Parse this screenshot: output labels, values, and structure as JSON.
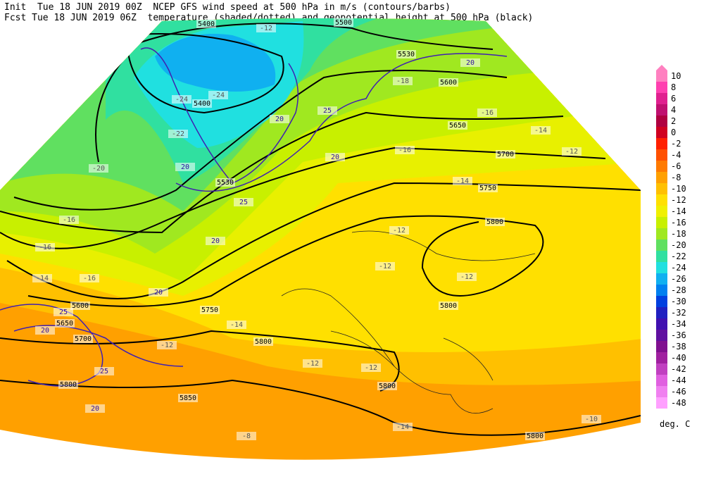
{
  "header": {
    "line1": "Init  Tue 18 JUN 2019 00Z  NCEP GFS wind speed at 500 hPa in m/s (contours/barbs)",
    "line2": "Fcst Tue 18 JUN 2019 06Z  temperature (shaded/dotted) and geopotential height at 500 hPa (black)"
  },
  "map": {
    "height_labels": [
      5400,
      5500,
      5530,
      5600,
      5650,
      5700,
      5750,
      5800,
      5800,
      5400,
      5530,
      5750,
      5800,
      5800,
      5800,
      5850,
      5800,
      5700,
      5650,
      5600
    ],
    "temperature_labels": [
      -12,
      -18,
      -16,
      -14,
      -12,
      -16,
      -14,
      -20,
      -22,
      -24,
      -24,
      -16,
      -16,
      -16,
      -14,
      -12,
      -12,
      -12,
      -14,
      -12,
      -12,
      -12,
      -14,
      -10,
      -8
    ],
    "wind_labels": [
      20,
      25,
      20,
      20,
      20,
      25,
      20,
      20,
      25,
      20,
      25,
      20
    ]
  },
  "colorbar": {
    "labels": [
      10,
      8,
      6,
      4,
      2,
      0,
      -2,
      -4,
      -6,
      -8,
      -10,
      -12,
      -14,
      -16,
      -18,
      -20,
      -22,
      -24,
      -26,
      -28,
      -30,
      -32,
      -34,
      -36,
      -38,
      -40,
      -42,
      -44,
      -46,
      -48
    ],
    "colors": [
      "#ff80c0",
      "#ff40b0",
      "#e0208f",
      "#c01070",
      "#b00040",
      "#d00020",
      "#ff2000",
      "#ff5000",
      "#ff7a00",
      "#ffa000",
      "#ffc000",
      "#ffe000",
      "#f0f000",
      "#c8f000",
      "#a0e820",
      "#60e060",
      "#30e0a0",
      "#20e0e0",
      "#10b0f0",
      "#0080f0",
      "#0040e0",
      "#2020c0",
      "#4010b0",
      "#6010a0",
      "#801090",
      "#a020a0",
      "#c040c0",
      "#e060e0",
      "#f080f0",
      "#ffa0ff"
    ],
    "unit": "deg. C"
  }
}
